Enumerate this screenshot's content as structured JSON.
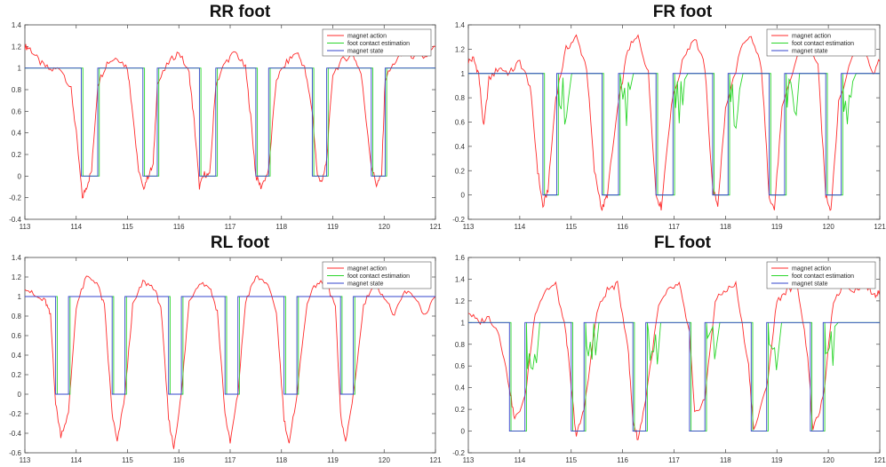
{
  "chart_data": [
    {
      "type": "line",
      "title": "RR foot",
      "xlabel": "",
      "ylabel": "",
      "xlim": [
        113,
        121
      ],
      "ylim": [
        -0.4,
        1.4
      ],
      "xticks": [
        "113",
        "114",
        "115",
        "116",
        "117",
        "118",
        "119",
        "120",
        "121"
      ],
      "yticks": [
        "-0.4",
        "-0.2",
        "0",
        "0.2",
        "0.4",
        "0.6",
        "0.8",
        "1",
        "1.2",
        "1.4"
      ],
      "legend": [
        "magnet action",
        "foot contact estimation",
        "magnet state"
      ],
      "legend_position": "top-right",
      "colors": {
        "magnet_action": "#ff2b2b",
        "foot_contact": "#2bd62b",
        "magnet_state": "#3344cc"
      },
      "stance_off_intervals": [
        [
          114.1,
          114.42
        ],
        [
          115.3,
          115.58
        ],
        [
          116.4,
          116.72
        ],
        [
          117.5,
          117.75
        ],
        [
          118.6,
          118.88
        ],
        [
          119.75,
          120.02
        ]
      ],
      "series": [
        {
          "name": "magnet action",
          "x": [
            113,
            113.1,
            113.3,
            113.5,
            113.7,
            113.9,
            114.0,
            114.12,
            114.2,
            114.3,
            114.42,
            114.6,
            114.8,
            115.0,
            115.1,
            115.2,
            115.3,
            115.4,
            115.5,
            115.58,
            115.8,
            116.0,
            116.2,
            116.3,
            116.4,
            116.5,
            116.6,
            116.72,
            116.9,
            117.1,
            117.3,
            117.4,
            117.5,
            117.6,
            117.75,
            117.9,
            118.1,
            118.3,
            118.45,
            118.6,
            118.7,
            118.8,
            118.88,
            119.0,
            119.2,
            119.4,
            119.55,
            119.75,
            119.85,
            119.95,
            120.02,
            120.2,
            120.4,
            120.6,
            120.8,
            121
          ],
          "y": [
            1.2,
            1.18,
            1.05,
            0.98,
            1.0,
            0.8,
            0.4,
            -0.2,
            -0.1,
            0.05,
            0.85,
            1.05,
            1.1,
            1.0,
            0.6,
            0.1,
            -0.12,
            0.0,
            0.1,
            0.85,
            1.05,
            1.15,
            0.95,
            0.5,
            -0.1,
            0.02,
            0.0,
            0.85,
            1.05,
            1.15,
            1.0,
            0.55,
            0.0,
            -0.1,
            0.05,
            0.9,
            1.05,
            1.15,
            1.0,
            0.6,
            0.0,
            -0.05,
            0.15,
            0.95,
            1.08,
            1.12,
            0.95,
            0.1,
            -0.08,
            0.0,
            0.9,
            1.05,
            1.15,
            1.1,
            1.1,
            1.2
          ]
        },
        {
          "name": "foot contact estimation",
          "x": [],
          "y": []
        },
        {
          "name": "magnet state",
          "x": [],
          "y": []
        }
      ]
    },
    {
      "type": "line",
      "title": "FR foot",
      "xlabel": "",
      "ylabel": "",
      "xlim": [
        113,
        121
      ],
      "ylim": [
        -0.2,
        1.4
      ],
      "xticks": [
        "113",
        "114",
        "115",
        "116",
        "117",
        "118",
        "119",
        "120",
        "121"
      ],
      "yticks": [
        "-0.2",
        "0",
        "0.2",
        "0.4",
        "0.6",
        "0.8",
        "1",
        "1.2",
        "1.4"
      ],
      "legend": [
        "magnet action",
        "foot contact estimation",
        "magnet state"
      ],
      "legend_position": "top-right",
      "colors": {
        "magnet_action": "#ff2b2b",
        "foot_contact": "#2bd62b",
        "magnet_state": "#3344cc"
      },
      "stance_off_intervals": [
        [
          114.45,
          114.72
        ],
        [
          115.6,
          115.92
        ],
        [
          116.65,
          116.98
        ],
        [
          117.75,
          118.05
        ],
        [
          118.85,
          119.15
        ],
        [
          119.95,
          120.25
        ]
      ],
      "series": [
        {
          "name": "magnet action",
          "x": [
            113,
            113.1,
            113.2,
            113.3,
            113.4,
            113.6,
            113.8,
            114.0,
            114.2,
            114.35,
            114.45,
            114.55,
            114.7,
            114.9,
            115.1,
            115.3,
            115.45,
            115.6,
            115.7,
            115.9,
            116.1,
            116.3,
            116.5,
            116.65,
            116.75,
            116.95,
            117.2,
            117.4,
            117.6,
            117.75,
            117.85,
            118.0,
            118.3,
            118.5,
            118.7,
            118.85,
            118.95,
            119.1,
            119.4,
            119.6,
            119.8,
            119.95,
            120.05,
            120.2,
            120.5,
            120.7,
            120.85,
            121
          ],
          "y": [
            1.1,
            1.12,
            1.0,
            0.55,
            0.95,
            1.05,
            1.0,
            1.1,
            0.9,
            0.2,
            -0.1,
            0.05,
            0.8,
            1.2,
            1.3,
            1.05,
            0.2,
            -0.12,
            0.0,
            0.7,
            1.2,
            1.3,
            1.0,
            0.0,
            -0.1,
            0.75,
            1.15,
            1.3,
            1.05,
            0.05,
            -0.08,
            0.7,
            1.2,
            1.3,
            1.05,
            0.0,
            -0.12,
            0.7,
            1.15,
            1.3,
            1.05,
            0.0,
            -0.12,
            0.75,
            1.2,
            1.25,
            1.0,
            1.1
          ]
        },
        {
          "name": "foot contact estimation",
          "x": [],
          "y": []
        },
        {
          "name": "magnet state",
          "x": [],
          "y": []
        }
      ]
    },
    {
      "type": "line",
      "title": "RL foot",
      "xlabel": "",
      "ylabel": "",
      "xlim": [
        113,
        121
      ],
      "ylim": [
        -0.6,
        1.4
      ],
      "xticks": [
        "113",
        "114",
        "115",
        "116",
        "117",
        "118",
        "119",
        "120",
        "121"
      ],
      "yticks": [
        "-0.6",
        "-0.4",
        "-0.2",
        "0",
        "0.2",
        "0.4",
        "0.6",
        "0.8",
        "1",
        "1.2",
        "1.4"
      ],
      "legend": [
        "magnet action",
        "foot contact estimation",
        "magnet state"
      ],
      "legend_position": "top-right",
      "colors": {
        "magnet_action": "#ff2b2b",
        "foot_contact": "#2bd62b",
        "magnet_state": "#3344cc"
      },
      "stance_off_intervals": [
        [
          113.6,
          113.85
        ],
        [
          114.7,
          114.95
        ],
        [
          115.8,
          116.05
        ],
        [
          116.9,
          117.15
        ],
        [
          118.05,
          118.3
        ],
        [
          119.15,
          119.4
        ]
      ],
      "series": [
        {
          "name": "magnet action",
          "x": [
            113,
            113.2,
            113.4,
            113.5,
            113.6,
            113.7,
            113.85,
            114.0,
            114.2,
            114.4,
            114.55,
            114.7,
            114.8,
            114.95,
            115.1,
            115.3,
            115.5,
            115.65,
            115.8,
            115.9,
            116.05,
            116.2,
            116.4,
            116.6,
            116.75,
            116.9,
            117.0,
            117.15,
            117.3,
            117.5,
            117.7,
            117.9,
            118.05,
            118.15,
            118.3,
            118.5,
            118.7,
            118.9,
            119.05,
            119.15,
            119.25,
            119.4,
            119.6,
            119.8,
            120.0,
            120.2,
            120.4,
            120.6,
            120.8,
            121
          ],
          "y": [
            1.1,
            1.0,
            0.95,
            0.8,
            -0.1,
            -0.42,
            -0.2,
            0.9,
            1.2,
            1.15,
            0.9,
            -0.2,
            -0.5,
            0.0,
            0.9,
            1.15,
            1.1,
            0.9,
            -0.25,
            -0.55,
            0.0,
            0.95,
            1.15,
            1.1,
            0.85,
            -0.2,
            -0.5,
            0.0,
            0.95,
            1.2,
            1.15,
            0.85,
            -0.25,
            -0.52,
            0.0,
            0.95,
            1.15,
            1.1,
            0.9,
            -0.2,
            -0.5,
            0.0,
            0.9,
            1.15,
            1.0,
            0.8,
            1.05,
            1.0,
            0.8,
            1.0
          ]
        },
        {
          "name": "foot contact estimation",
          "x": [],
          "y": []
        },
        {
          "name": "magnet state",
          "x": [],
          "y": []
        }
      ]
    },
    {
      "type": "line",
      "title": "FL foot",
      "xlabel": "",
      "ylabel": "",
      "xlim": [
        113,
        121
      ],
      "ylim": [
        -0.2,
        1.6
      ],
      "xticks": [
        "113",
        "114",
        "115",
        "116",
        "117",
        "118",
        "119",
        "120",
        "121"
      ],
      "yticks": [
        "-0.2",
        "0",
        "0.2",
        "0.4",
        "0.6",
        "0.8",
        "1",
        "1.2",
        "1.4",
        "1.6"
      ],
      "legend": [
        "magnet action",
        "foot contact estimation",
        "magnet state"
      ],
      "legend_position": "top-right",
      "colors": {
        "magnet_action": "#ff2b2b",
        "foot_contact": "#2bd62b",
        "magnet_state": "#3344cc"
      },
      "stance_off_intervals": [
        [
          113.8,
          114.1
        ],
        [
          115.0,
          115.25
        ],
        [
          116.2,
          116.45
        ],
        [
          117.3,
          117.6
        ],
        [
          118.5,
          118.8
        ],
        [
          119.65,
          119.9
        ]
      ],
      "series": [
        {
          "name": "magnet action",
          "x": [
            113,
            113.2,
            113.4,
            113.6,
            113.8,
            113.9,
            114.1,
            114.3,
            114.5,
            114.7,
            114.9,
            115.0,
            115.1,
            115.25,
            115.5,
            115.7,
            115.9,
            116.1,
            116.2,
            116.3,
            116.45,
            116.7,
            116.9,
            117.1,
            117.3,
            117.4,
            117.6,
            117.8,
            118.0,
            118.2,
            118.45,
            118.55,
            118.8,
            119.0,
            119.2,
            119.4,
            119.6,
            119.7,
            119.9,
            120.1,
            120.3,
            120.5,
            120.7,
            120.9,
            121
          ],
          "y": [
            1.1,
            1.0,
            1.05,
            0.9,
            0.4,
            0.1,
            0.3,
            1.1,
            1.3,
            1.35,
            0.9,
            0.4,
            -0.05,
            0.2,
            1.1,
            1.3,
            1.35,
            0.8,
            0.1,
            -0.08,
            0.3,
            1.15,
            1.3,
            1.35,
            0.9,
            0.15,
            0.3,
            1.2,
            1.3,
            1.35,
            0.6,
            0.0,
            0.4,
            1.2,
            1.3,
            1.35,
            0.7,
            0.0,
            0.3,
            1.2,
            1.35,
            1.3,
            1.35,
            1.25,
            1.3
          ]
        },
        {
          "name": "foot contact estimation",
          "x": [],
          "y": []
        },
        {
          "name": "magnet state",
          "x": [],
          "y": []
        }
      ]
    }
  ]
}
